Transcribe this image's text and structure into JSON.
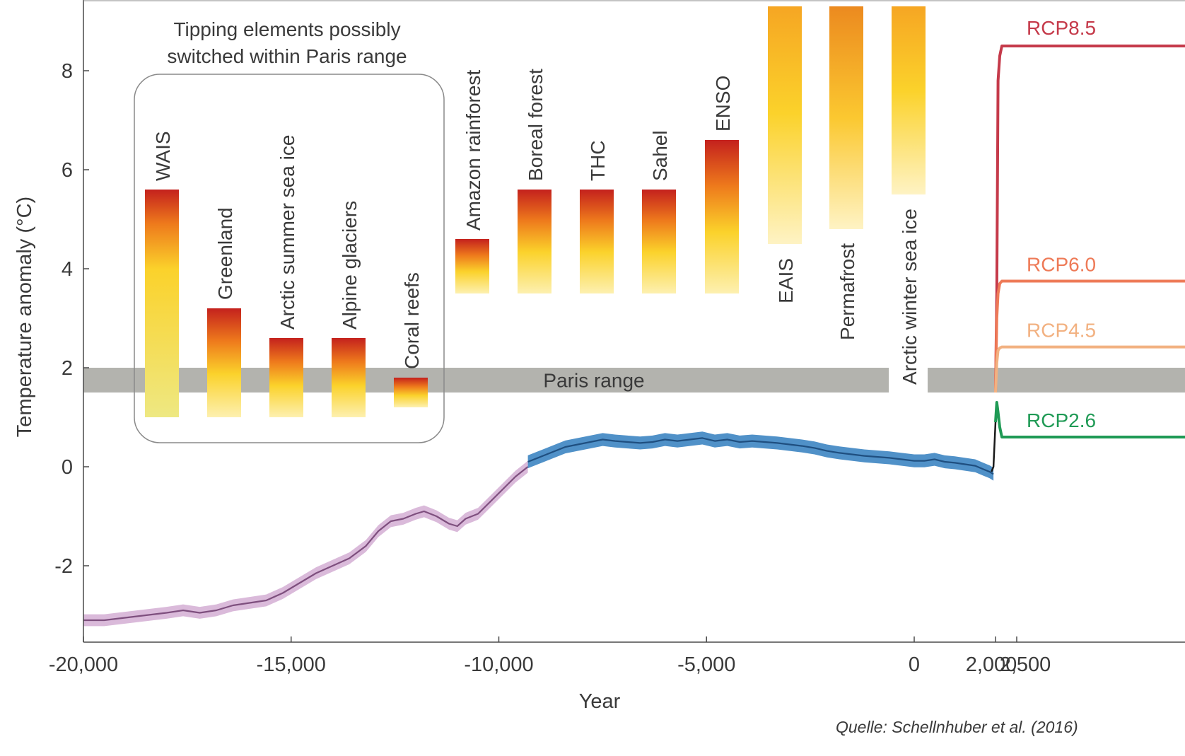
{
  "chart_data": {
    "type": "line",
    "xlabel": "Year",
    "ylabel": "Temperature anomaly (°C)",
    "ylim": [
      -3.5,
      9.3
    ],
    "x_ticks": [
      "-20,000",
      "-15,000",
      "-10,000",
      "-5,000",
      "0",
      "2,000",
      "2,500"
    ],
    "y_ticks": [
      "-2",
      "0",
      "2",
      "4",
      "6",
      "8"
    ],
    "group_title_line1": "Tipping elements possibly",
    "group_title_line2": "switched within Paris range",
    "paris_range": {
      "label": "Paris range",
      "low": 1.5,
      "high": 2.0,
      "color": "#b3b3ae"
    },
    "tipping_elements": [
      {
        "name": "WAIS",
        "low": 1.0,
        "high": 5.6,
        "kind": "gradient"
      },
      {
        "name": "Greenland",
        "low": 1.0,
        "high": 3.2,
        "kind": "gradient"
      },
      {
        "name": "Arctic summer sea ice",
        "low": 1.0,
        "high": 2.6,
        "kind": "gradient"
      },
      {
        "name": "Alpine glaciers",
        "low": 1.0,
        "high": 2.6,
        "kind": "gradient"
      },
      {
        "name": "Coral reefs",
        "low": 1.2,
        "high": 1.8,
        "kind": "gradient"
      },
      {
        "name": "Amazon rainforest",
        "low": 3.5,
        "high": 4.6,
        "kind": "gradient"
      },
      {
        "name": "Boreal forest",
        "low": 3.5,
        "high": 5.6,
        "kind": "gradient"
      },
      {
        "name": "THC",
        "low": 3.5,
        "high": 5.6,
        "kind": "gradient"
      },
      {
        "name": "Sahel",
        "low": 3.5,
        "high": 5.6,
        "kind": "gradient"
      },
      {
        "name": "ENSO",
        "low": 3.5,
        "high": 6.6,
        "kind": "gradient"
      },
      {
        "name": "EAIS",
        "low": 4.5,
        "high": 9.3,
        "kind": "open"
      },
      {
        "name": "Permafrost",
        "low": 4.8,
        "high": 9.3,
        "kind": "open"
      },
      {
        "name": "Arctic winter sea ice",
        "low": 5.5,
        "high": 9.3,
        "kind": "open"
      }
    ],
    "series": [
      {
        "key": "reconstruction-pink",
        "color": "#7e4f7e",
        "band_color": "#d6b2d6",
        "x": [
          -20000,
          -19500,
          -19000,
          -18500,
          -18000,
          -17600,
          -17200,
          -16800,
          -16400,
          -16000,
          -15600,
          -15200,
          -14800,
          -14400,
          -14000,
          -13600,
          -13200,
          -12900,
          -12600,
          -12300,
          -12000,
          -11800,
          -11500,
          -11200,
          -11000,
          -10800,
          -10500,
          -10200,
          -9900,
          -9600,
          -9300
        ],
        "y": [
          -3.1,
          -3.1,
          -3.05,
          -3.0,
          -2.95,
          -2.9,
          -2.95,
          -2.9,
          -2.8,
          -2.75,
          -2.7,
          -2.55,
          -2.35,
          -2.15,
          -2.0,
          -1.85,
          -1.6,
          -1.3,
          -1.1,
          -1.05,
          -0.95,
          -0.9,
          -1.0,
          -1.15,
          -1.2,
          -1.05,
          -0.95,
          -0.7,
          -0.45,
          -0.2,
          0.0
        ],
        "band": 0.12
      },
      {
        "key": "reconstruction-blue",
        "color": "#1f4f80",
        "band_color": "#3d85c2",
        "x": [
          -9300,
          -9000,
          -8700,
          -8400,
          -8100,
          -7800,
          -7500,
          -7200,
          -6900,
          -6600,
          -6300,
          -6000,
          -5700,
          -5400,
          -5100,
          -4800,
          -4500,
          -4200,
          -3900,
          -3600,
          -3300,
          -3000,
          -2700,
          -2400,
          -2100,
          -1800,
          -1500,
          -1200,
          -900,
          -600,
          -300,
          0,
          250,
          500,
          750,
          1000,
          1250,
          1500,
          1700,
          1850,
          1950
        ],
        "y": [
          0.1,
          0.2,
          0.3,
          0.4,
          0.45,
          0.5,
          0.55,
          0.52,
          0.5,
          0.48,
          0.5,
          0.55,
          0.52,
          0.55,
          0.58,
          0.52,
          0.55,
          0.5,
          0.52,
          0.5,
          0.48,
          0.45,
          0.42,
          0.38,
          0.32,
          0.28,
          0.25,
          0.22,
          0.2,
          0.18,
          0.15,
          0.12,
          0.12,
          0.15,
          0.1,
          0.08,
          0.05,
          0.02,
          -0.05,
          -0.1,
          -0.15
        ],
        "band": 0.13
      },
      {
        "key": "instrumental",
        "color": "#1a1a1a",
        "x": [
          1900,
          1950,
          2000
        ],
        "y": [
          -0.1,
          0.0,
          0.9
        ]
      }
    ],
    "scenarios": [
      {
        "name": "RCP8.5",
        "color": "#c53a4a",
        "x": [
          2000,
          2030,
          2060,
          2100,
          2150,
          2200,
          2250,
          2500
        ],
        "y": [
          1.5,
          3.5,
          7.8,
          8.3,
          8.5,
          8.5,
          8.5,
          8.5
        ]
      },
      {
        "name": "RCP6.0",
        "color": "#ee7a57",
        "x": [
          2000,
          2030,
          2060,
          2100,
          2150,
          2200,
          2250,
          2500
        ],
        "y": [
          1.5,
          3.0,
          3.5,
          3.7,
          3.75,
          3.75,
          3.75,
          3.75
        ]
      },
      {
        "name": "RCP4.5",
        "color": "#f2b181",
        "x": [
          2000,
          2030,
          2060,
          2100,
          2150,
          2200,
          2250,
          2500
        ],
        "y": [
          1.5,
          2.1,
          2.35,
          2.4,
          2.42,
          2.42,
          2.42,
          2.42
        ]
      },
      {
        "name": "RCP2.6",
        "color": "#1f9a55",
        "x": [
          2000,
          2030,
          2060,
          2100,
          2150,
          2200,
          2250,
          2500
        ],
        "y": [
          0.9,
          1.3,
          1.1,
          0.8,
          0.6,
          0.6,
          0.6,
          0.6
        ]
      }
    ],
    "source": "Quelle: Schellnhuber et al. (2016)"
  }
}
